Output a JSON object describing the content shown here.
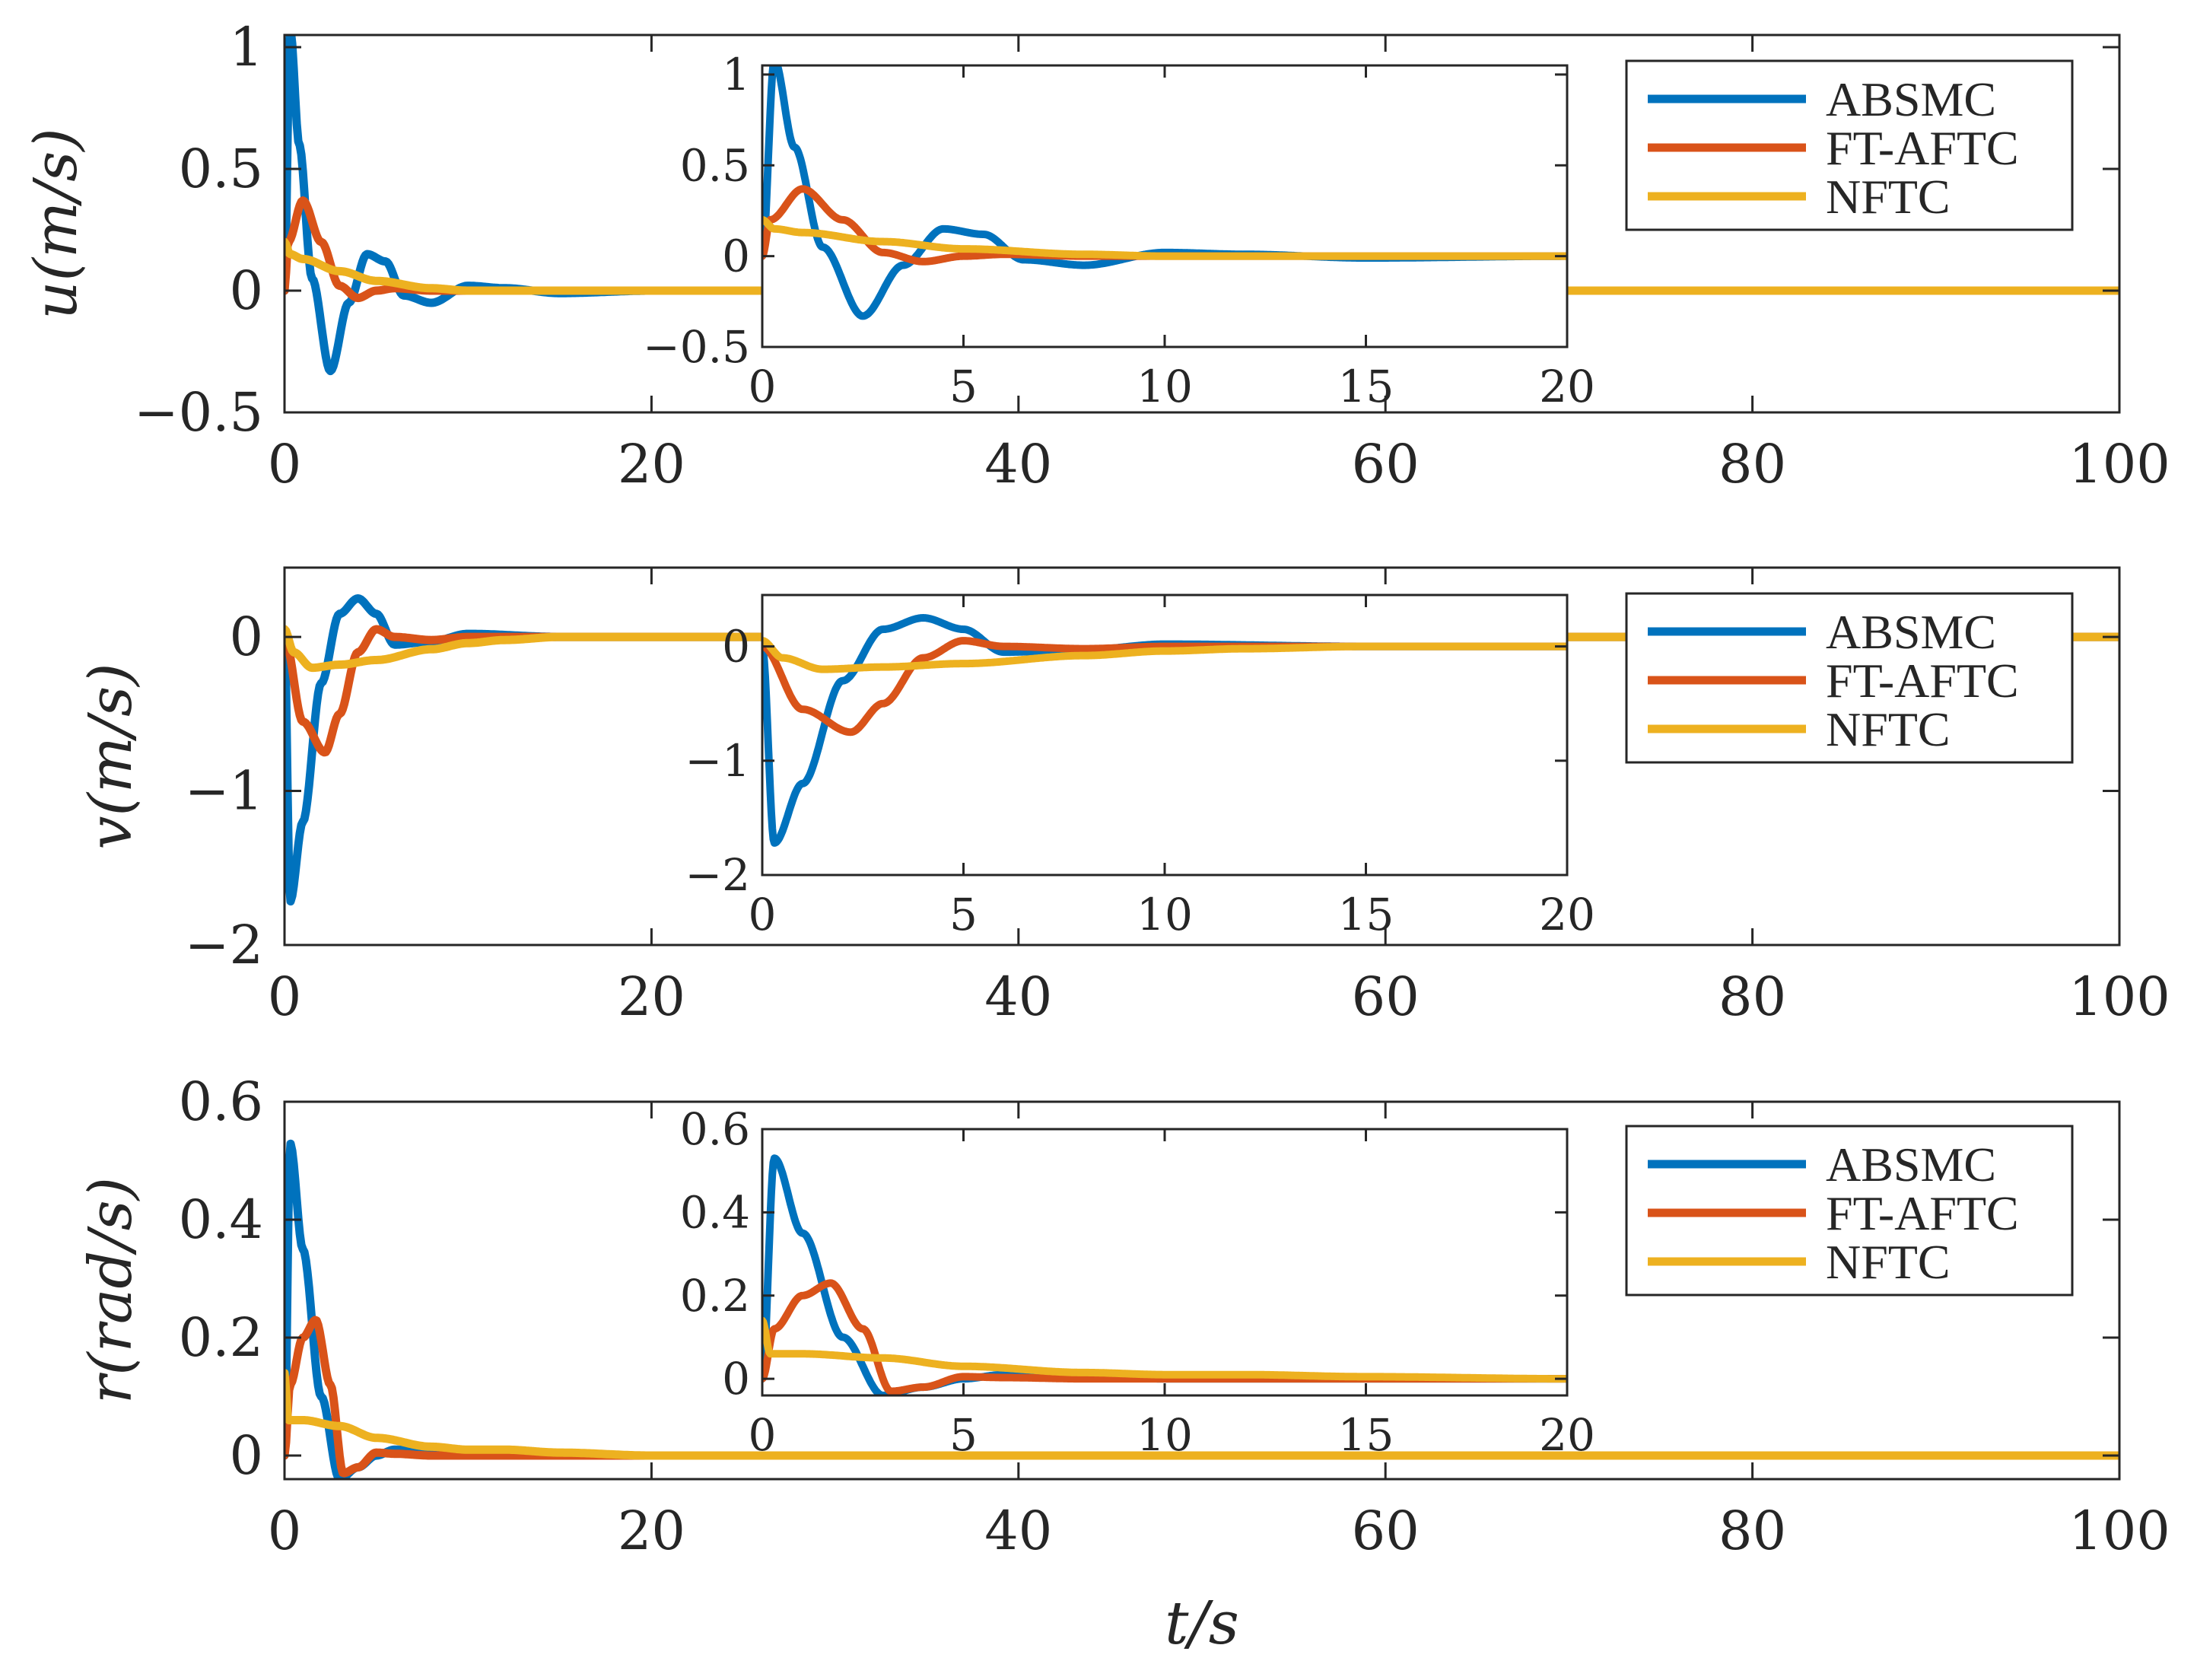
{
  "colors": {
    "ABSMC": "#0072BD",
    "FT-AFTC": "#D95319",
    "NFTC": "#EDB120",
    "axis": "#262626"
  },
  "chart_data": [
    {
      "type": "line",
      "ylabel": "u(m/s)",
      "xlabel": "",
      "xlim": [
        0,
        100
      ],
      "ylim": [
        -0.5,
        1.05
      ],
      "xticks": [
        0,
        20,
        40,
        60,
        80,
        100
      ],
      "xtick_labels": [
        "0",
        "20",
        "40",
        "60",
        "80",
        "100"
      ],
      "yticks": [
        -0.5,
        0,
        0.5,
        1
      ],
      "ytick_labels": [
        "−0.5",
        "0",
        "0.5",
        "1"
      ],
      "legend": [
        "ABSMC",
        "FT-AFTC",
        "NFTC"
      ],
      "legend_position": "top-right",
      "series": [
        {
          "name": "ABSMC",
          "x": [
            0,
            0.3,
            0.8,
            1.5,
            2.5,
            3.5,
            4.5,
            5.5,
            6.5,
            8,
            10,
            12,
            15,
            20,
            30,
            50,
            100
          ],
          "y": [
            0,
            1.08,
            0.6,
            0.05,
            -0.33,
            -0.05,
            0.15,
            0.12,
            -0.02,
            -0.05,
            0.02,
            0.01,
            -0.01,
            0,
            0,
            0,
            0
          ]
        },
        {
          "name": "FT-AFTC",
          "x": [
            0,
            0.2,
            1,
            2,
            3,
            4,
            5,
            6,
            8,
            10,
            15,
            20,
            100
          ],
          "y": [
            0,
            0.2,
            0.37,
            0.2,
            0.02,
            -0.03,
            0,
            0.01,
            0,
            0,
            0,
            0,
            0
          ]
        },
        {
          "name": "NFTC",
          "x": [
            0,
            0.3,
            1,
            3,
            5,
            8,
            10,
            15,
            20,
            100
          ],
          "y": [
            0.2,
            0.15,
            0.13,
            0.08,
            0.04,
            0.01,
            0,
            0,
            0,
            0
          ]
        }
      ],
      "inset": {
        "xlim": [
          0,
          20
        ],
        "ylim": [
          -0.5,
          1.05
        ],
        "xticks": [
          0,
          5,
          10,
          15,
          20
        ],
        "xtick_labels": [
          "0",
          "5",
          "10",
          "15",
          "20"
        ],
        "yticks": [
          -0.5,
          0,
          0.5,
          1
        ],
        "ytick_labels": [
          "−0.5",
          "0",
          "0.5",
          "1"
        ]
      }
    },
    {
      "type": "line",
      "ylabel": "v(m/s)",
      "xlabel": "",
      "xlim": [
        0,
        100
      ],
      "ylim": [
        -2,
        0.45
      ],
      "xticks": [
        0,
        20,
        40,
        60,
        80,
        100
      ],
      "xtick_labels": [
        "0",
        "20",
        "40",
        "60",
        "80",
        "100"
      ],
      "yticks": [
        -2,
        -1,
        0
      ],
      "ytick_labels": [
        "−2",
        "−1",
        "0"
      ],
      "legend": [
        "ABSMC",
        "FT-AFTC",
        "NFTC"
      ],
      "legend_position": "top-right",
      "series": [
        {
          "name": "ABSMC",
          "x": [
            0,
            0.3,
            1,
            2,
            3,
            4,
            5,
            6,
            8,
            10,
            15,
            20,
            100
          ],
          "y": [
            0,
            -1.72,
            -1.2,
            -0.3,
            0.15,
            0.25,
            0.15,
            -0.05,
            -0.03,
            0.02,
            0,
            0,
            0
          ]
        },
        {
          "name": "FT-AFTC",
          "x": [
            0,
            1,
            2.2,
            3,
            4,
            5,
            6,
            8,
            10,
            20,
            100
          ],
          "y": [
            0,
            -0.55,
            -0.75,
            -0.5,
            -0.1,
            0.05,
            0,
            -0.02,
            0,
            0,
            0
          ]
        },
        {
          "name": "NFTC",
          "x": [
            0,
            0.5,
            1.5,
            3,
            5,
            8,
            10,
            12,
            15,
            20,
            100
          ],
          "y": [
            0.05,
            -0.1,
            -0.2,
            -0.18,
            -0.15,
            -0.08,
            -0.04,
            -0.02,
            0,
            0,
            0
          ]
        }
      ],
      "inset": {
        "xlim": [
          0,
          20
        ],
        "ylim": [
          -2,
          0.45
        ],
        "xticks": [
          0,
          5,
          10,
          15,
          20
        ],
        "xtick_labels": [
          "0",
          "5",
          "10",
          "15",
          "20"
        ],
        "yticks": [
          -2,
          -1,
          0
        ],
        "ytick_labels": [
          "−2",
          "−1",
          "0"
        ]
      }
    },
    {
      "type": "line",
      "ylabel": "r(rad/s)",
      "xlabel": "t/s",
      "xlim": [
        0,
        100
      ],
      "ylim": [
        -0.04,
        0.6
      ],
      "xticks": [
        0,
        20,
        40,
        60,
        80,
        100
      ],
      "xtick_labels": [
        "0",
        "20",
        "40",
        "60",
        "80",
        "100"
      ],
      "yticks": [
        0,
        0.2,
        0.4,
        0.6
      ],
      "ytick_labels": [
        "0",
        "0.2",
        "0.4",
        "0.6"
      ],
      "legend": [
        "ABSMC",
        "FT-AFTC",
        "NFTC"
      ],
      "legend_position": "top-right",
      "series": [
        {
          "name": "ABSMC",
          "x": [
            0,
            0.3,
            1,
            2,
            3,
            4,
            5,
            6,
            8,
            10,
            20,
            100
          ],
          "y": [
            0,
            0.53,
            0.35,
            0.1,
            -0.04,
            -0.02,
            0,
            0.01,
            0.005,
            0,
            0,
            0
          ]
        },
        {
          "name": "FT-AFTC",
          "x": [
            0,
            0.3,
            1,
            1.7,
            2.5,
            3.2,
            4,
            5,
            6,
            8,
            10,
            20,
            100
          ],
          "y": [
            0,
            0.12,
            0.2,
            0.23,
            0.12,
            -0.03,
            -0.02,
            0.005,
            0.003,
            0,
            0,
            0,
            0
          ]
        },
        {
          "name": "NFTC",
          "x": [
            0,
            0.2,
            1,
            3,
            5,
            8,
            10,
            12,
            15,
            20,
            100
          ],
          "y": [
            0.14,
            0.06,
            0.06,
            0.05,
            0.03,
            0.015,
            0.01,
            0.01,
            0.005,
            0,
            0
          ]
        }
      ],
      "inset": {
        "xlim": [
          0,
          20
        ],
        "ylim": [
          -0.04,
          0.6
        ],
        "xticks": [
          0,
          5,
          10,
          15,
          20
        ],
        "xtick_labels": [
          "0",
          "5",
          "10",
          "15",
          "20"
        ],
        "yticks": [
          0,
          0.2,
          0.4,
          0.6
        ],
        "ytick_labels": [
          "0",
          "0.2",
          "0.4",
          "0.6"
        ]
      }
    }
  ]
}
